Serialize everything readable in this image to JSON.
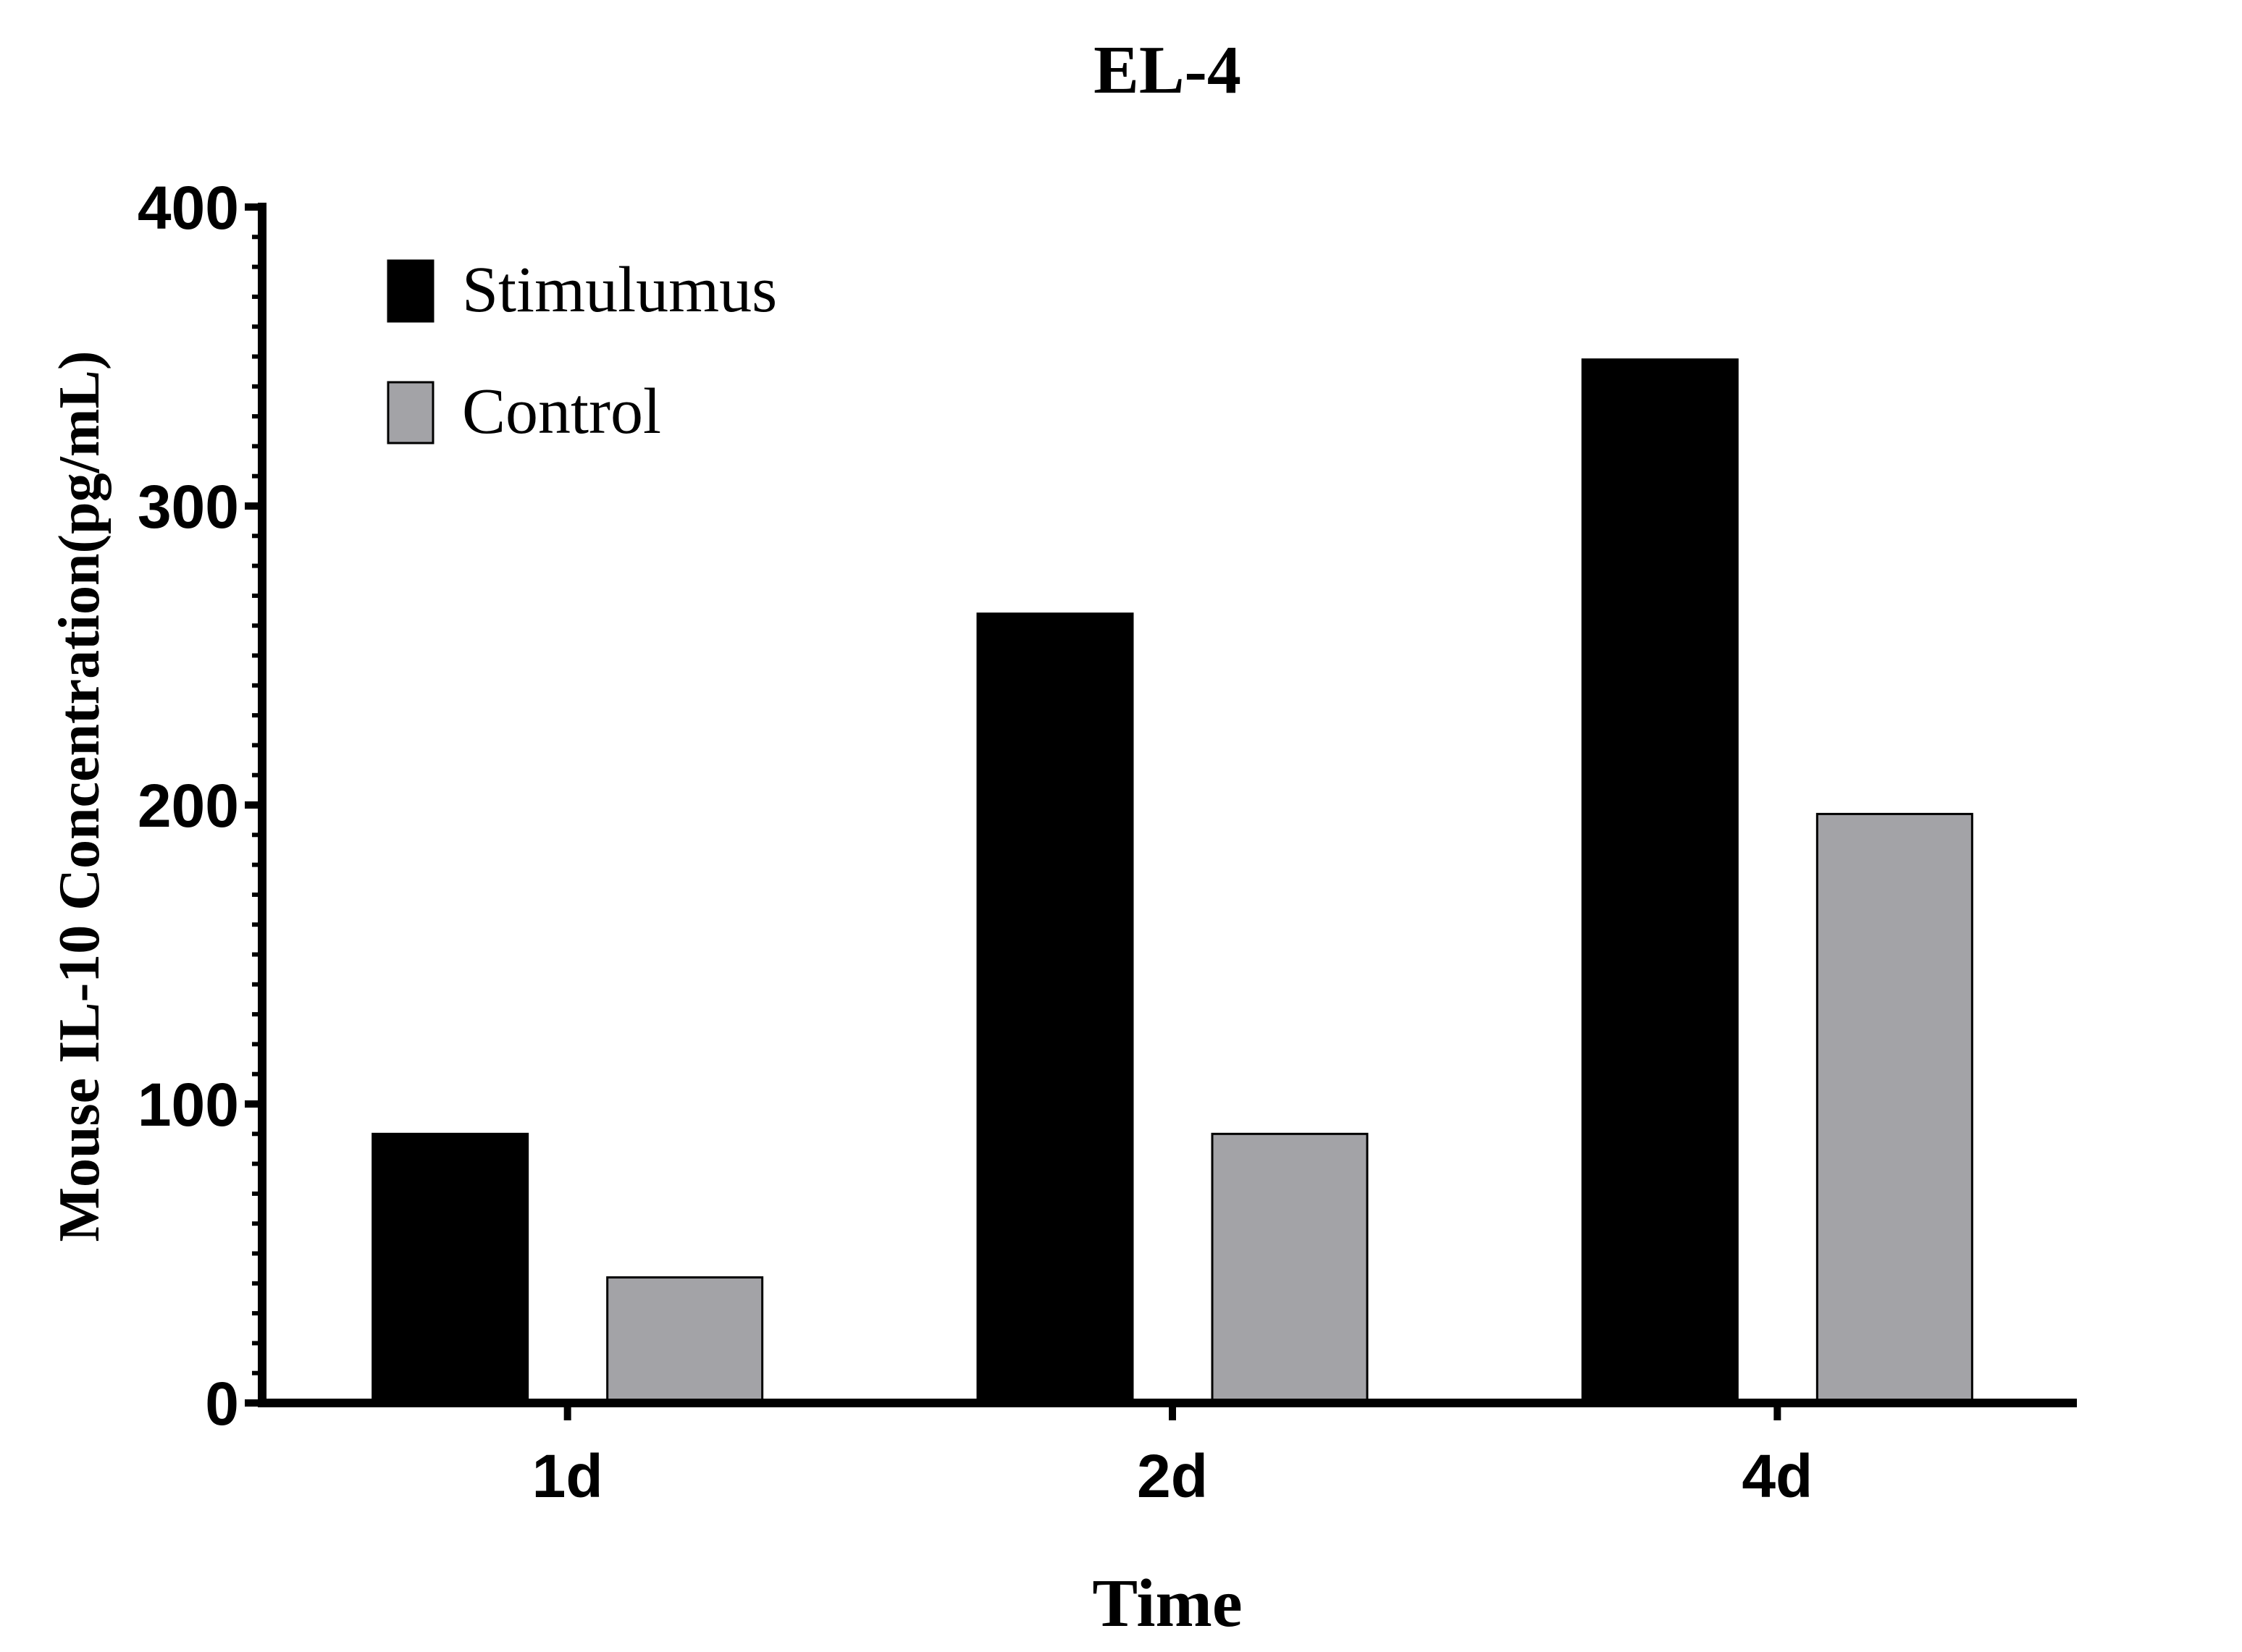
{
  "chart_data": {
    "type": "bar",
    "title": "EL-4",
    "xlabel": "Time",
    "ylabel": "Mouse IL-10 Concentration(pg/mL)",
    "categories": [
      "1d",
      "2d",
      "4d"
    ],
    "series": [
      {
        "name": "Stimulumus",
        "color": "#000000",
        "values": [
          90,
          264,
          349
        ]
      },
      {
        "name": "Control",
        "color": "#a3a3a7",
        "values": [
          42,
          90,
          197
        ]
      }
    ],
    "ylim": [
      0,
      400
    ],
    "yticks": [
      0,
      100,
      200,
      300,
      400
    ],
    "ytick_labels": [
      "0",
      "100",
      "200",
      "300",
      "400"
    ],
    "grid": false,
    "legend_position": "top-left"
  }
}
